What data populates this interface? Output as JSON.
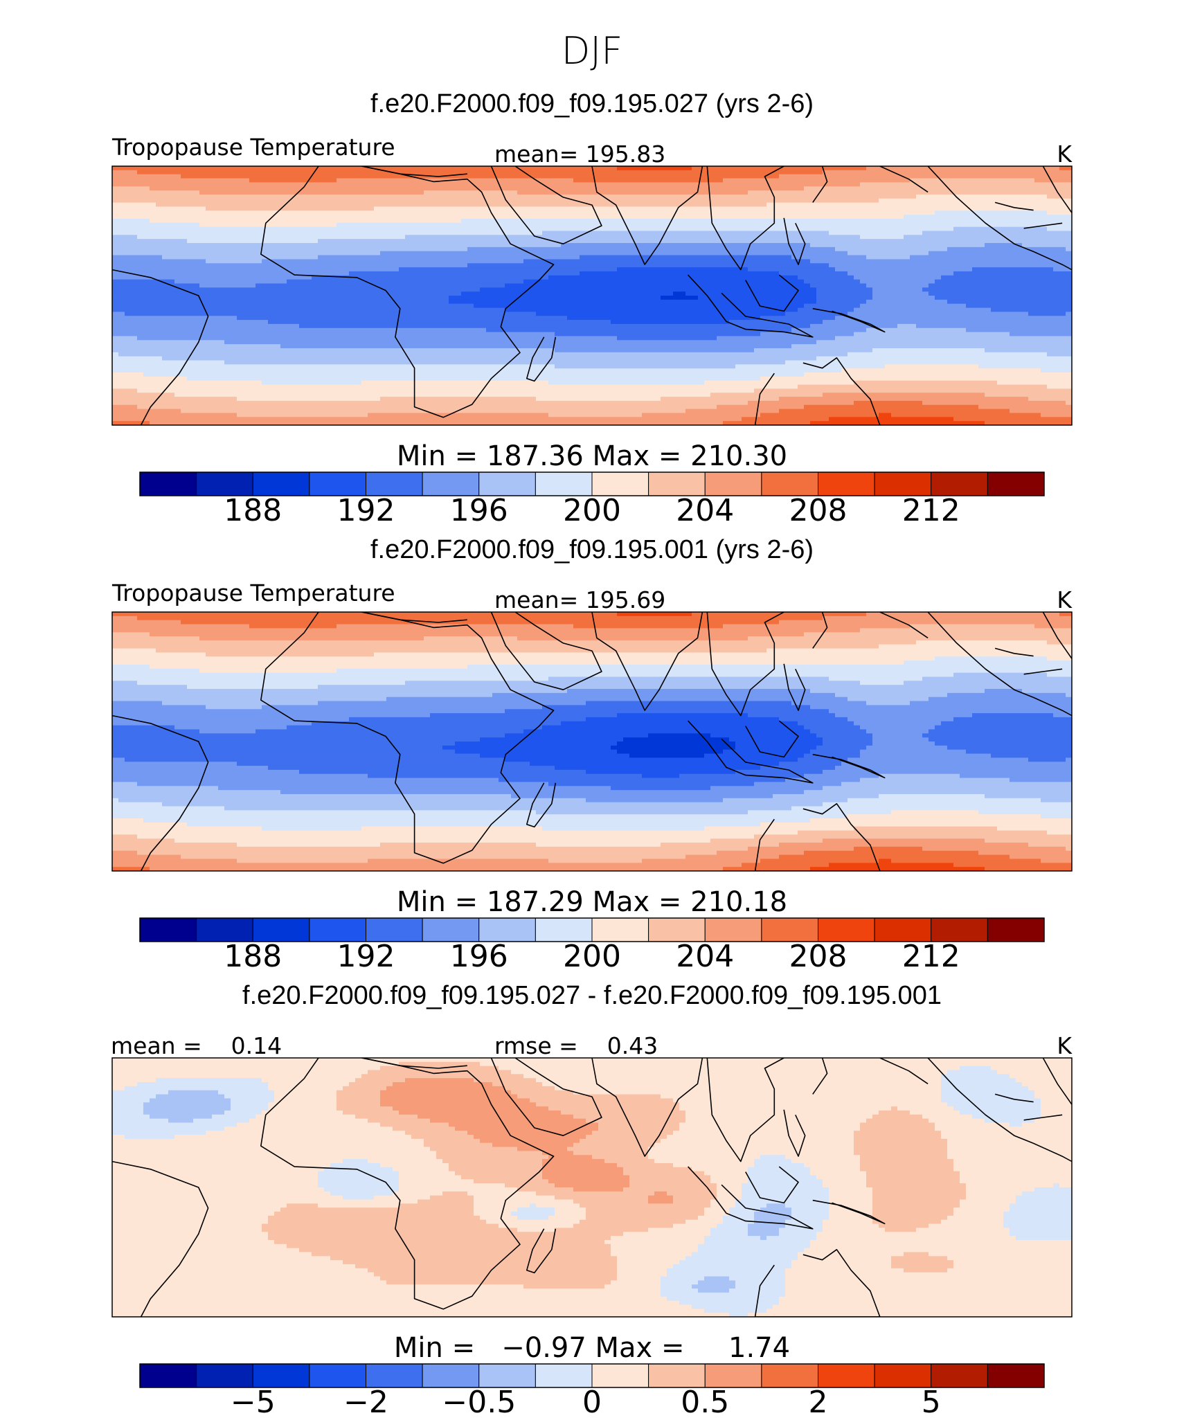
{
  "page": {
    "season": "DJF"
  },
  "panels": [
    {
      "title": "f.e20.F2000.f09_f09.195.027 (yrs 2-6)",
      "left_label": "Tropopause Temperature",
      "center_label": "mean= 195.83",
      "units": "K",
      "minmax": "Min = 187.36 Max = 210.30",
      "field": "abs1",
      "colorbar_ticks": [
        "188",
        "192",
        "196",
        "200",
        "204",
        "208",
        "212"
      ],
      "colors": [
        "#00008f",
        "#0021b1",
        "#0037d6",
        "#1f55ef",
        "#3e6fee",
        "#7399f2",
        "#a9c3f7",
        "#d6e5fa",
        "#fde6d6",
        "#f9c1a6",
        "#f79c78",
        "#f2703e",
        "#f0440e",
        "#dc2f00",
        "#b21c00",
        "#840000"
      ]
    },
    {
      "title": "f.e20.F2000.f09_f09.195.001 (yrs 2-6)",
      "left_label": "Tropopause Temperature",
      "center_label": "mean= 195.69",
      "units": "K",
      "minmax": "Min = 187.29 Max = 210.18",
      "field": "abs2",
      "colorbar_ticks": [
        "188",
        "192",
        "196",
        "200",
        "204",
        "208",
        "212"
      ],
      "colors": [
        "#00008f",
        "#0021b1",
        "#0037d6",
        "#1f55ef",
        "#3e6fee",
        "#7399f2",
        "#a9c3f7",
        "#d6e5fa",
        "#fde6d6",
        "#f9c1a6",
        "#f79c78",
        "#f2703e",
        "#f0440e",
        "#dc2f00",
        "#b21c00",
        "#840000"
      ]
    },
    {
      "title": "f.e20.F2000.f09_f09.195.027 - f.e20.F2000.f09_f09.195.001",
      "left_label": "mean =    0.14",
      "center_label": "rmse =    0.43",
      "units": "K",
      "minmax": "Min =   −0.97 Max =     1.74",
      "field": "diff",
      "colorbar_ticks": [
        "−5",
        "−2",
        "−0.5",
        "0",
        "0.5",
        "2",
        "5"
      ],
      "colors": [
        "#00008f",
        "#0021b1",
        "#0037d6",
        "#1f55ef",
        "#3e6fee",
        "#7399f2",
        "#a9c3f7",
        "#d6e5fa",
        "#fde6d6",
        "#f9c1a6",
        "#f79c78",
        "#f2703e",
        "#f0440e",
        "#dc2f00",
        "#b21c00",
        "#840000"
      ]
    }
  ]
}
